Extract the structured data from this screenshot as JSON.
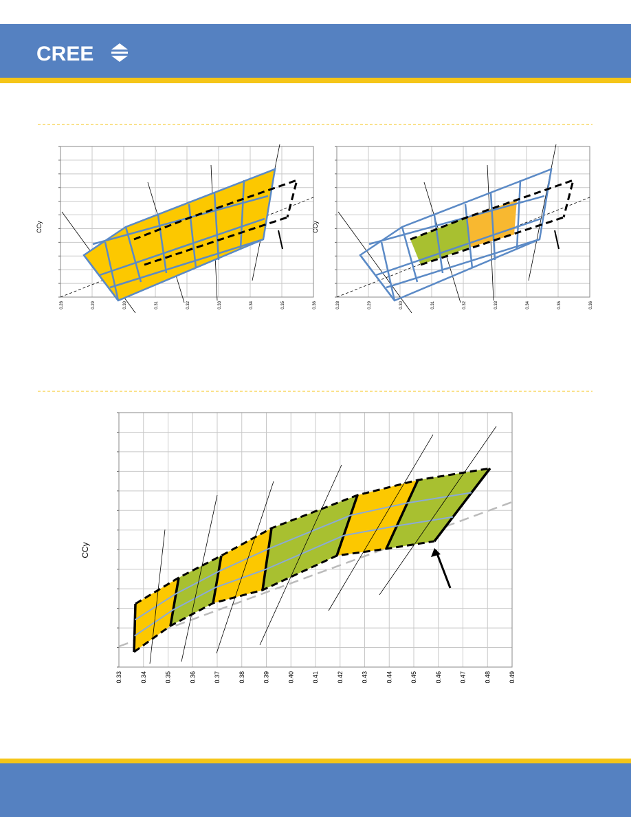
{
  "header": {
    "logo": "CREE"
  },
  "charts": [
    {
      "y_label": "CCy",
      "xlim": [
        0.28,
        0.36
      ],
      "xticks": [
        {
          "value": 0.28,
          "label": "0.28"
        },
        {
          "value": 0.29,
          "label": "0.29"
        },
        {
          "value": 0.3,
          "label": "0.30"
        },
        {
          "value": 0.31,
          "label": "0.31"
        },
        {
          "value": 0.32,
          "label": "0.32"
        },
        {
          "value": 0.33,
          "label": "0.33"
        },
        {
          "value": 0.34,
          "label": "0.34"
        },
        {
          "value": 0.35,
          "label": "0.35"
        },
        {
          "value": 0.36,
          "label": "0.36"
        }
      ]
    },
    {
      "y_label": "CCy",
      "xlim": [
        0.28,
        0.36
      ],
      "xticks": [
        {
          "value": 0.28,
          "label": "0.28"
        },
        {
          "value": 0.29,
          "label": "0.29"
        },
        {
          "value": 0.3,
          "label": "0.30"
        },
        {
          "value": 0.31,
          "label": "0.31"
        },
        {
          "value": 0.32,
          "label": "0.32"
        },
        {
          "value": 0.33,
          "label": "0.33"
        },
        {
          "value": 0.34,
          "label": "0.34"
        },
        {
          "value": 0.35,
          "label": "0.35"
        },
        {
          "value": 0.36,
          "label": "0.36"
        }
      ]
    },
    {
      "y_label": "CCy",
      "xlim": [
        0.33,
        0.49
      ],
      "xticks": [
        {
          "value": 0.33,
          "label": "0.33"
        },
        {
          "value": 0.34,
          "label": "0.34"
        },
        {
          "value": 0.35,
          "label": "0.35"
        },
        {
          "value": 0.36,
          "label": "0.36"
        },
        {
          "value": 0.37,
          "label": "0.37"
        },
        {
          "value": 0.38,
          "label": "0.38"
        },
        {
          "value": 0.39,
          "label": "0.39"
        },
        {
          "value": 0.4,
          "label": "0.40"
        },
        {
          "value": 0.41,
          "label": "0.41"
        },
        {
          "value": 0.42,
          "label": "0.42"
        },
        {
          "value": 0.43,
          "label": "0.43"
        },
        {
          "value": 0.44,
          "label": "0.44"
        },
        {
          "value": 0.45,
          "label": "0.45"
        },
        {
          "value": 0.46,
          "label": "0.46"
        },
        {
          "value": 0.47,
          "label": "0.47"
        },
        {
          "value": 0.48,
          "label": "0.48"
        },
        {
          "value": 0.49,
          "label": "0.49"
        }
      ]
    }
  ]
}
